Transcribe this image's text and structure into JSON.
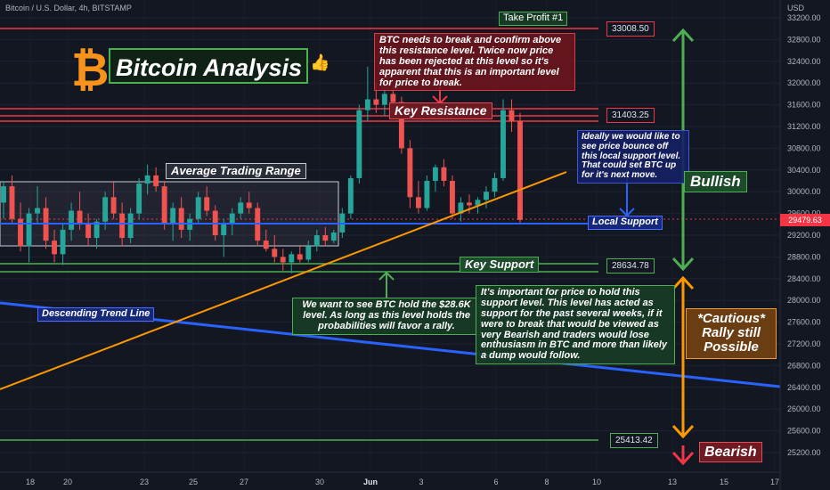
{
  "header": {
    "symbol": "Bitcoin / U.S. Dollar, 4h, BITSTAMP",
    "currency": "USD"
  },
  "price_axis": {
    "ticks": [
      "33200.00",
      "32800.00",
      "32400.00",
      "32000.00",
      "31600.00",
      "31200.00",
      "30800.00",
      "30400.00",
      "30000.00",
      "29600.00",
      "29200.00",
      "28800.00",
      "28400.00",
      "28000.00",
      "27600.00",
      "27200.00",
      "26800.00",
      "26400.00",
      "26000.00",
      "25600.00",
      "25200.00"
    ],
    "current_price": "29479.63"
  },
  "time_axis": {
    "ticks": [
      "18",
      "20",
      "23",
      "25",
      "27",
      "30",
      "Jun",
      "3",
      "6",
      "8",
      "10",
      "13",
      "15",
      "17"
    ]
  },
  "title": "Bitcoin Analysis",
  "title_icons": {
    "logo": "bitcoin-logo-icon",
    "thumb": "thumbs-up-icon"
  },
  "colors": {
    "background": "#131722",
    "bull_candle": "#26a69a",
    "bear_candle": "#ef5350",
    "resistance": "#f23645",
    "support": "#4caf50",
    "trend": "#2962ff",
    "uptrend": "#ff9800",
    "bitcoin_orange": "#f7931a"
  },
  "levels": {
    "take_profit": "33008.50",
    "resistance": "31403.25",
    "support": "28634.78",
    "bearish": "25413.42"
  },
  "labels": {
    "take_profit": "Take Profit #1",
    "key_resistance": "Key Resistance",
    "key_support": "Key Support",
    "local_support": "Local Support",
    "average_range": "Average Trading Range",
    "descending": "Descending Trend Line",
    "bullish": "Bullish",
    "cautious": "*Cautious* Rally still Possible",
    "bearish": "Bearish"
  },
  "notes": {
    "resistance": "BTC needs to break and confirm above this resistance level. Twice now price has been rejected at this level so it's apparent that this is an important level for price to break.",
    "local_support": "Ideally we would like to see price bounce off this local support level. That could set BTC up for it's next move.",
    "hold_support": "We want to see BTC hold the $28.6K level. As long as this level holds the probabilities will favor a rally.",
    "key_support": "It's important for price to hold this support level. This level has acted as support for the past several weeks, if it were to break that would be viewed as very Bearish and traders would lose enthusiasm in BTC and more than likely a dump would follow."
  },
  "chart_data": {
    "type": "candlestick",
    "symbol": "Bitcoin / U.S. Dollar",
    "interval": "4h",
    "exchange": "BITSTAMP",
    "ylim": [
      25000,
      33300
    ],
    "candles": [
      {
        "o": 29800,
        "h": 30200,
        "l": 29500,
        "c": 30100
      },
      {
        "o": 30100,
        "h": 30300,
        "l": 29400,
        "c": 29500
      },
      {
        "o": 29500,
        "h": 29800,
        "l": 28900,
        "c": 29000
      },
      {
        "o": 29000,
        "h": 29700,
        "l": 28700,
        "c": 29600
      },
      {
        "o": 29600,
        "h": 30100,
        "l": 29400,
        "c": 29700
      },
      {
        "o": 29700,
        "h": 29900,
        "l": 28950,
        "c": 29100
      },
      {
        "o": 29100,
        "h": 29300,
        "l": 28700,
        "c": 28850
      },
      {
        "o": 28850,
        "h": 29400,
        "l": 28650,
        "c": 29300
      },
      {
        "o": 29300,
        "h": 29800,
        "l": 29100,
        "c": 29650
      },
      {
        "o": 29650,
        "h": 30000,
        "l": 29300,
        "c": 29400
      },
      {
        "o": 29400,
        "h": 29600,
        "l": 29000,
        "c": 29150
      },
      {
        "o": 29150,
        "h": 29500,
        "l": 28950,
        "c": 29450
      },
      {
        "o": 29450,
        "h": 30000,
        "l": 29300,
        "c": 29900
      },
      {
        "o": 29900,
        "h": 30200,
        "l": 29500,
        "c": 29600
      },
      {
        "o": 29600,
        "h": 29800,
        "l": 29000,
        "c": 29150
      },
      {
        "o": 29150,
        "h": 29700,
        "l": 29050,
        "c": 29600
      },
      {
        "o": 29600,
        "h": 30250,
        "l": 29500,
        "c": 30150
      },
      {
        "o": 30150,
        "h": 30500,
        "l": 29950,
        "c": 30300
      },
      {
        "o": 30300,
        "h": 30450,
        "l": 30000,
        "c": 30100
      },
      {
        "o": 30100,
        "h": 30200,
        "l": 29300,
        "c": 29400
      },
      {
        "o": 29400,
        "h": 29800,
        "l": 29100,
        "c": 29700
      },
      {
        "o": 29700,
        "h": 29900,
        "l": 29150,
        "c": 29300
      },
      {
        "o": 29300,
        "h": 29600,
        "l": 29100,
        "c": 29500
      },
      {
        "o": 29500,
        "h": 30000,
        "l": 29400,
        "c": 29900
      },
      {
        "o": 29900,
        "h": 30100,
        "l": 29550,
        "c": 29650
      },
      {
        "o": 29650,
        "h": 29750,
        "l": 29100,
        "c": 29200
      },
      {
        "o": 29200,
        "h": 29500,
        "l": 28800,
        "c": 29400
      },
      {
        "o": 29400,
        "h": 29700,
        "l": 29200,
        "c": 29600
      },
      {
        "o": 29600,
        "h": 29900,
        "l": 29500,
        "c": 29800
      },
      {
        "o": 29800,
        "h": 30000,
        "l": 29600,
        "c": 29700
      },
      {
        "o": 29700,
        "h": 29800,
        "l": 29000,
        "c": 29100
      },
      {
        "o": 29100,
        "h": 29300,
        "l": 28900,
        "c": 28950
      },
      {
        "o": 28950,
        "h": 29200,
        "l": 28700,
        "c": 28800
      },
      {
        "o": 28800,
        "h": 28950,
        "l": 28550,
        "c": 28700
      },
      {
        "o": 28700,
        "h": 28900,
        "l": 28500,
        "c": 28850
      },
      {
        "o": 28850,
        "h": 29000,
        "l": 28700,
        "c": 28750
      },
      {
        "o": 28750,
        "h": 29100,
        "l": 28700,
        "c": 29000
      },
      {
        "o": 29000,
        "h": 29300,
        "l": 28900,
        "c": 29200
      },
      {
        "o": 29200,
        "h": 29350,
        "l": 29000,
        "c": 29100
      },
      {
        "o": 29100,
        "h": 29300,
        "l": 29050,
        "c": 29250
      },
      {
        "o": 29250,
        "h": 29700,
        "l": 29150,
        "c": 29600
      },
      {
        "o": 29600,
        "h": 30300,
        "l": 29500,
        "c": 30250
      },
      {
        "o": 30250,
        "h": 31600,
        "l": 30150,
        "c": 31500
      },
      {
        "o": 31500,
        "h": 32300,
        "l": 31300,
        "c": 31700
      },
      {
        "o": 31700,
        "h": 32000,
        "l": 31450,
        "c": 31600
      },
      {
        "o": 31600,
        "h": 31900,
        "l": 31400,
        "c": 31800
      },
      {
        "o": 31800,
        "h": 31950,
        "l": 31550,
        "c": 31650
      },
      {
        "o": 31650,
        "h": 31750,
        "l": 30700,
        "c": 30800
      },
      {
        "o": 30800,
        "h": 30950,
        "l": 29700,
        "c": 29900
      },
      {
        "o": 29900,
        "h": 30200,
        "l": 29600,
        "c": 29700
      },
      {
        "o": 29700,
        "h": 30300,
        "l": 29650,
        "c": 30200
      },
      {
        "o": 30200,
        "h": 30500,
        "l": 30000,
        "c": 30450
      },
      {
        "o": 30450,
        "h": 30600,
        "l": 30100,
        "c": 30200
      },
      {
        "o": 30200,
        "h": 30300,
        "l": 29500,
        "c": 29600
      },
      {
        "o": 29600,
        "h": 29900,
        "l": 29450,
        "c": 29800
      },
      {
        "o": 29800,
        "h": 29950,
        "l": 29600,
        "c": 29750
      },
      {
        "o": 29750,
        "h": 29900,
        "l": 29600,
        "c": 29850
      },
      {
        "o": 29850,
        "h": 30100,
        "l": 29700,
        "c": 30000
      },
      {
        "o": 30000,
        "h": 30350,
        "l": 29900,
        "c": 30250
      },
      {
        "o": 30250,
        "h": 31700,
        "l": 30200,
        "c": 31500
      },
      {
        "o": 31500,
        "h": 31700,
        "l": 31100,
        "c": 31300
      },
      {
        "o": 31300,
        "h": 31450,
        "l": 29400,
        "c": 29480
      }
    ]
  }
}
